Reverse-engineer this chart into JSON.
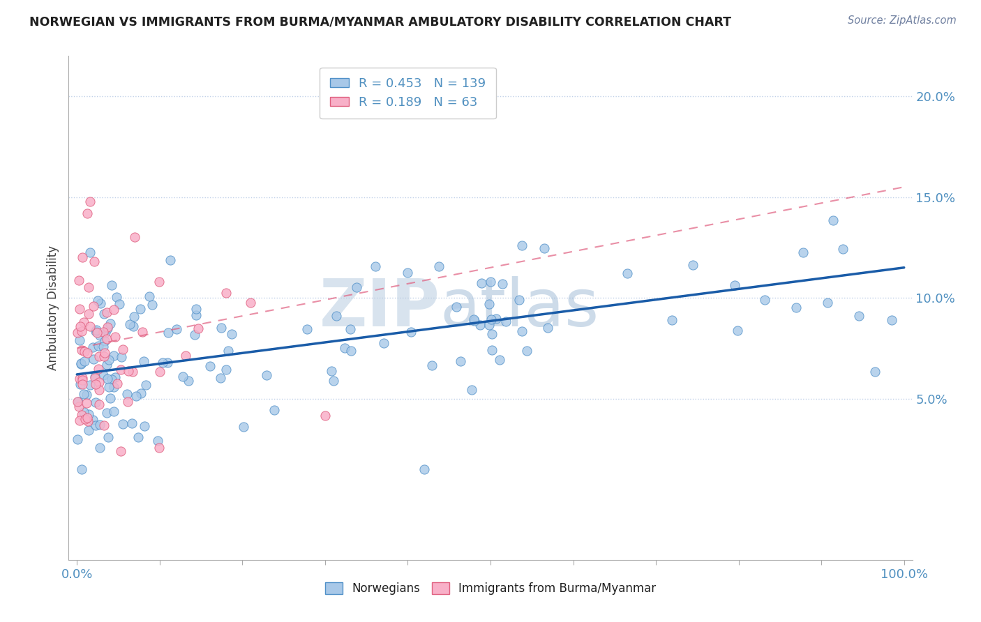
{
  "title": "NORWEGIAN VS IMMIGRANTS FROM BURMA/MYANMAR AMBULATORY DISABILITY CORRELATION CHART",
  "source_text": "Source: ZipAtlas.com",
  "ylabel": "Ambulatory Disability",
  "legend_blue_R": "0.453",
  "legend_blue_N": "139",
  "legend_pink_R": "0.189",
  "legend_pink_N": "63",
  "watermark_top": "ZIP",
  "watermark_bot": "atlas",
  "blue_scatter_color": "#a8c8e8",
  "blue_edge_color": "#5090c8",
  "pink_scatter_color": "#f8b0c8",
  "pink_edge_color": "#e06080",
  "blue_line_color": "#1a5ca8",
  "pink_line_color": "#e06080",
  "background_color": "#ffffff",
  "grid_color": "#c0d0e8",
  "title_color": "#202020",
  "axis_label_color": "#5090c0",
  "source_color": "#7080a0",
  "ylim": [
    -3,
    22
  ],
  "xlim": [
    -1,
    101
  ],
  "yticks": [
    5,
    10,
    15,
    20
  ],
  "ytick_labels": [
    "5.0%",
    "10.0%",
    "15.0%",
    "20.0%"
  ],
  "blue_line_y0": 6.2,
  "blue_line_y1": 11.5,
  "pink_line_x0": 0,
  "pink_line_x1": 100,
  "pink_line_y0": 7.5,
  "pink_line_y1": 15.5,
  "figsize": [
    14.06,
    8.92
  ],
  "dpi": 100
}
